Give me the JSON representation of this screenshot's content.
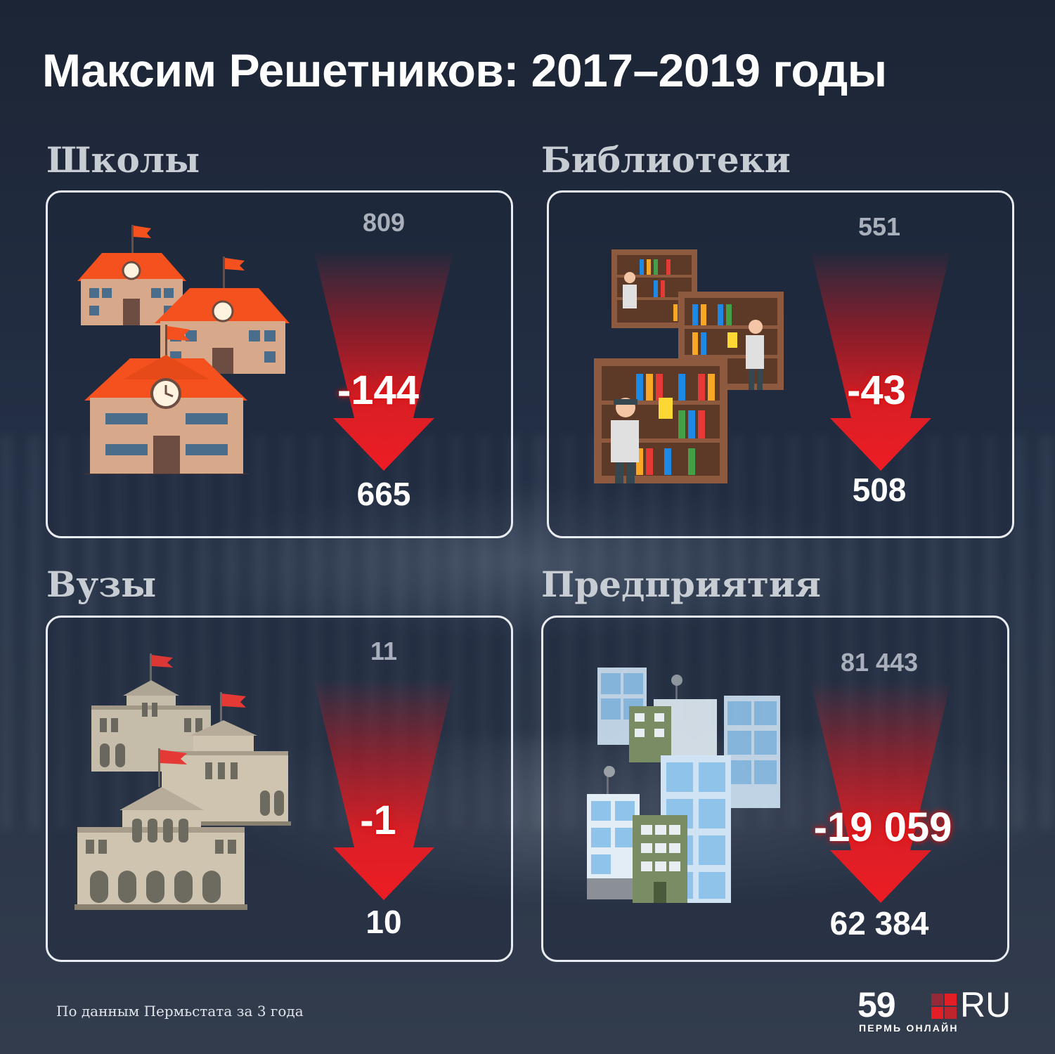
{
  "title": "Максим Решетников: 2017–2019 годы",
  "colors": {
    "background": "#222d40",
    "arrow": "#e31e24",
    "card_border": "#e9ecf1",
    "label": "#c8ccd3"
  },
  "sections": [
    {
      "label": "Школы",
      "value_start": "809",
      "delta": "-144",
      "value_end": "665",
      "icon": "school-buildings-icon"
    },
    {
      "label": "Библиотеки",
      "value_start": "551",
      "delta": "-43",
      "value_end": "508",
      "icon": "library-bookshelves-icon"
    },
    {
      "label": "Вузы",
      "value_start": "11",
      "delta": "-1",
      "value_end": "10",
      "icon": "university-buildings-icon"
    },
    {
      "label": "Предприятия",
      "value_start": "81 443",
      "delta": "-19 059",
      "value_end": "62 384",
      "icon": "office-buildings-icon"
    }
  ],
  "footer": {
    "source": "По данным Пермьстата за 3 года",
    "logo_number": "59",
    "logo_suffix": "RU",
    "logo_subtitle": "ПЕРМЬ ОНЛАЙН"
  }
}
